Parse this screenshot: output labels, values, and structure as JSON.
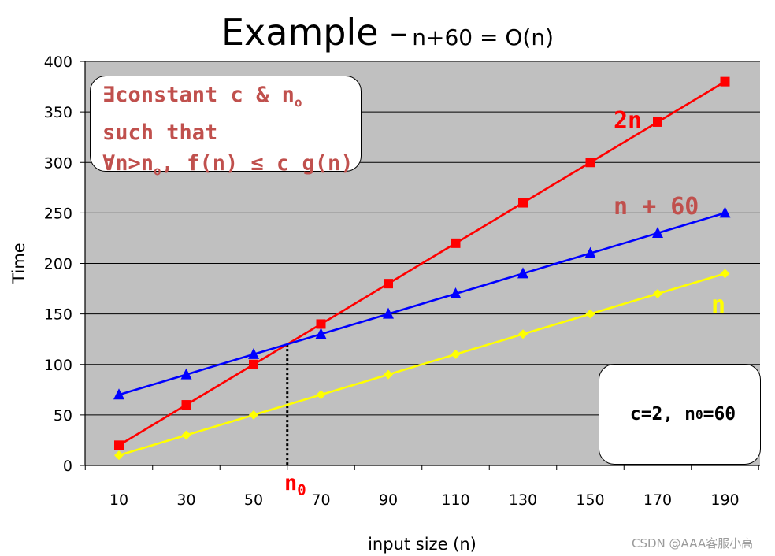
{
  "title_main": "Example –",
  "title_formula": "n+60 = O(n)",
  "definition_box": {
    "line1_prefix": "∃constant c & n",
    "line1_sub": "o",
    "line2": "such that",
    "line3_prefix": "∀n>n",
    "line3_sub": "o",
    "line3_suffix": ", f(n) ≤ c g(n)"
  },
  "param_box": {
    "prefix": "c=2, n",
    "sub": "0",
    "suffix": "=60"
  },
  "n0_marker": {
    "text": "n",
    "sub": "0"
  },
  "watermark": "CSDN @AAA客服小高",
  "chart_data": {
    "type": "line",
    "xlabel": "input size (n)",
    "ylabel": "Time",
    "x": [
      10,
      30,
      50,
      70,
      90,
      110,
      130,
      150,
      170,
      190
    ],
    "x_tick_labels": [
      "10",
      "30",
      "50",
      "70",
      "90",
      "110",
      "130",
      "150",
      "170",
      "190"
    ],
    "ylim": [
      0,
      400
    ],
    "y_ticks": [
      0,
      50,
      100,
      150,
      200,
      250,
      300,
      350,
      400
    ],
    "grid": "horizontal",
    "plot_background": "#c0c0c0",
    "series": [
      {
        "name": "2n",
        "color": "#ff0000",
        "label_color": "#ff0000",
        "marker": "square",
        "values": [
          20,
          60,
          100,
          140,
          180,
          220,
          260,
          300,
          340,
          380
        ]
      },
      {
        "name": "n + 60",
        "color": "#0000ff",
        "label_color": "#c0504d",
        "marker": "triangle",
        "values": [
          70,
          90,
          110,
          130,
          150,
          170,
          190,
          210,
          230,
          250
        ]
      },
      {
        "name": "n",
        "color": "#ffff00",
        "label_color": "#ffff00",
        "marker": "diamond",
        "values": [
          10,
          30,
          50,
          70,
          90,
          110,
          130,
          150,
          170,
          190
        ]
      }
    ],
    "crossover_line": {
      "x": 60,
      "y": 120,
      "style": "dotted",
      "color": "#000000"
    }
  }
}
